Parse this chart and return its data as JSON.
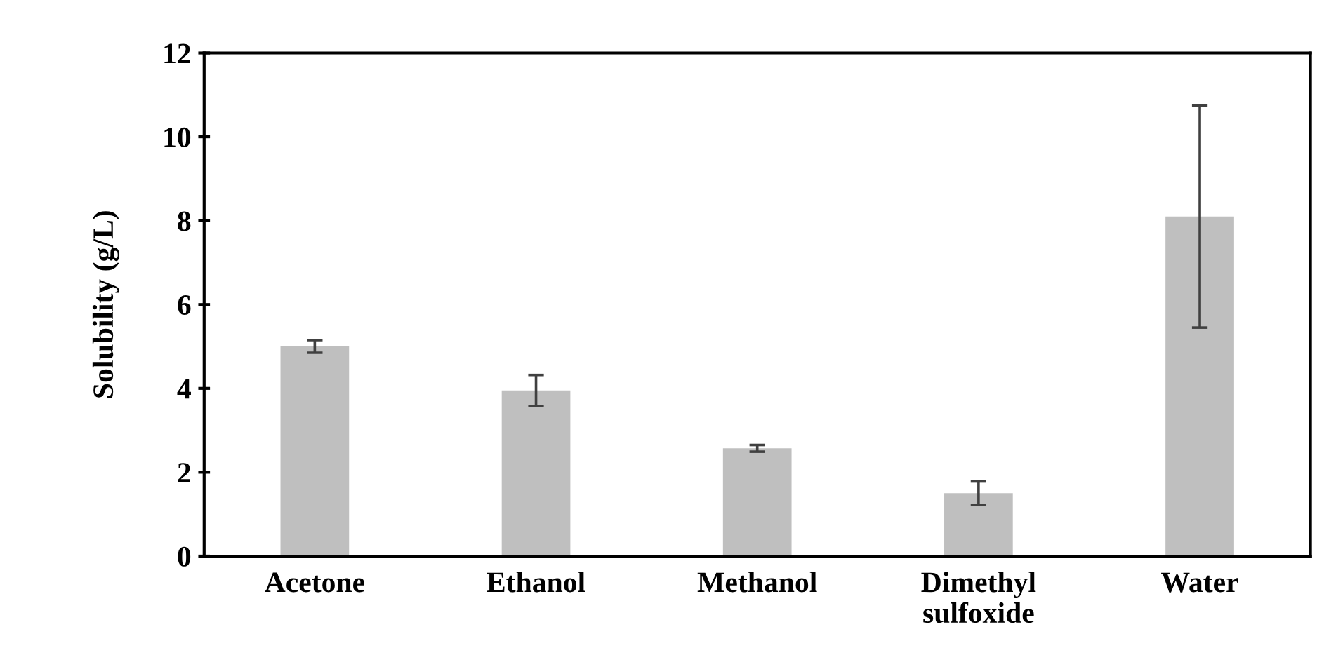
{
  "chart_data": {
    "type": "bar",
    "ylabel": "Solubility (g/L)",
    "categories": [
      "Acetone",
      "Ethanol",
      "Methanol",
      "Dimethyl\nsulfoxide",
      "Water"
    ],
    "values": [
      5.0,
      3.95,
      2.57,
      1.5,
      8.1
    ],
    "errors": [
      0.15,
      0.37,
      0.08,
      0.28,
      2.65
    ],
    "color": "#bfbfbf",
    "ylim": [
      0,
      12
    ],
    "yticks": [
      0,
      2,
      4,
      6,
      8,
      10,
      12
    ],
    "grid": false
  }
}
